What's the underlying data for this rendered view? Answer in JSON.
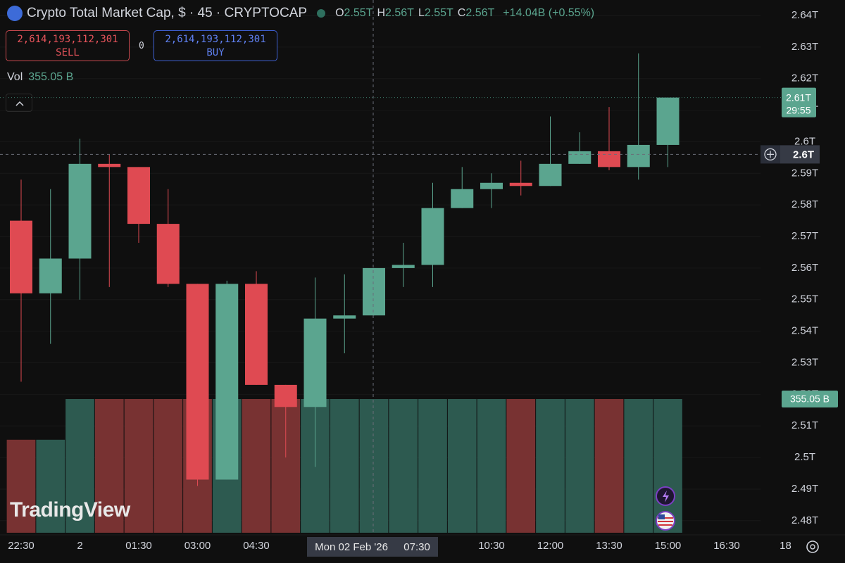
{
  "header": {
    "title": "Crypto Total Market Cap, $ · 45 · CRYPTOCAP",
    "ohlc": [
      {
        "key": "O",
        "value": "2.55T"
      },
      {
        "key": "H",
        "value": "2.56T"
      },
      {
        "key": "L",
        "value": "2.55T"
      },
      {
        "key": "C",
        "value": "2.56T"
      }
    ],
    "change": "+14.04B (+0.55%)"
  },
  "trade": {
    "sell_price": "2,614,193,112,301",
    "sell_label": "SELL",
    "spread": "0",
    "buy_price": "2,614,193,112,301",
    "buy_label": "BUY"
  },
  "volume_legend": {
    "label": "Vol",
    "value": "355.05 B"
  },
  "watermark": "TradingView",
  "crosshair_date": "Mon 02 Feb '26",
  "crosshair_clock": "07:30",
  "chart_data": {
    "type": "candlestick",
    "categories": [
      "22:30",
      null,
      "2",
      null,
      "01:30",
      null,
      "03:00",
      null,
      "04:30",
      null,
      null,
      null,
      null,
      null,
      null,
      null,
      "10:30",
      null,
      "12:00",
      null,
      "13:30",
      null,
      "15:00",
      null,
      "16:30",
      null,
      "18"
    ],
    "open": [
      2.575,
      2.552,
      2.563,
      2.593,
      2.592,
      2.574,
      2.555,
      2.493,
      2.555,
      2.523,
      2.516,
      2.544,
      2.545,
      2.56,
      2.561,
      2.579,
      2.585,
      2.587,
      2.586,
      2.593,
      2.597,
      2.592,
      2.599,
      null,
      null,
      null,
      null
    ],
    "high": [
      2.588,
      2.585,
      2.601,
      2.596,
      2.592,
      2.585,
      2.555,
      2.556,
      2.559,
      2.523,
      2.557,
      2.558,
      2.56,
      2.568,
      2.587,
      2.592,
      2.59,
      2.594,
      2.608,
      2.603,
      2.611,
      2.628,
      2.614,
      null,
      null,
      null,
      null
    ],
    "low": [
      2.524,
      2.536,
      2.55,
      2.554,
      2.568,
      2.554,
      2.491,
      2.493,
      2.523,
      2.5,
      2.497,
      2.533,
      2.545,
      2.554,
      2.554,
      2.579,
      2.579,
      2.583,
      2.586,
      2.593,
      2.591,
      2.588,
      2.592,
      null,
      null,
      null,
      null
    ],
    "close": [
      2.552,
      2.563,
      2.593,
      2.592,
      2.574,
      2.555,
      2.493,
      2.555,
      2.523,
      2.516,
      2.544,
      2.545,
      2.56,
      2.561,
      2.579,
      2.585,
      2.587,
      2.586,
      2.593,
      2.597,
      2.592,
      2.599,
      2.614,
      null,
      null,
      null,
      null
    ],
    "volume": [
      247,
      247,
      355.05,
      355.05,
      355.05,
      355.05,
      355.05,
      355.05,
      355.05,
      355.05,
      355.05,
      355.05,
      355.05,
      355.05,
      355.05,
      355.05,
      355.05,
      355.05,
      355.05,
      355.05,
      355.05,
      355.05,
      355.05,
      null,
      null,
      null,
      null
    ],
    "up_color": "#5ba58f",
    "down_color": "#df4a52",
    "volume_up_color": "#2d5a50",
    "volume_down_color": "#783232",
    "ylim": [
      2.4755,
      2.6449
    ],
    "yticks": [
      {
        "value": 2.48,
        "label": "2.48T"
      },
      {
        "value": 2.49,
        "label": "2.49T"
      },
      {
        "value": 2.5,
        "label": "2.5T"
      },
      {
        "value": 2.51,
        "label": "2.51T"
      },
      {
        "value": 2.52,
        "label": "2.52T"
      },
      {
        "value": 2.53,
        "label": "2.53T"
      },
      {
        "value": 2.54,
        "label": "2.54T"
      },
      {
        "value": 2.55,
        "label": "2.55T"
      },
      {
        "value": 2.56,
        "label": "2.56T"
      },
      {
        "value": 2.57,
        "label": "2.57T"
      },
      {
        "value": 2.58,
        "label": "2.58T"
      },
      {
        "value": 2.59,
        "label": "2.59T"
      },
      {
        "value": 2.6,
        "label": "2.6T"
      },
      {
        "value": 2.61,
        "label": "2.61T"
      },
      {
        "value": 2.62,
        "label": "2.62T"
      },
      {
        "value": 2.63,
        "label": "2.63T"
      },
      {
        "value": 2.64,
        "label": "2.64T"
      }
    ],
    "y2lim": [
      0,
      1414.6
    ],
    "grid": true,
    "last_price": {
      "value": 2.614,
      "label": "2.61T"
    },
    "countdown": "29:55",
    "crosshair_price": {
      "value": 2.596,
      "label": "2.6T"
    },
    "volume_badge": {
      "value": 355.05,
      "label": "355.05 B"
    }
  }
}
